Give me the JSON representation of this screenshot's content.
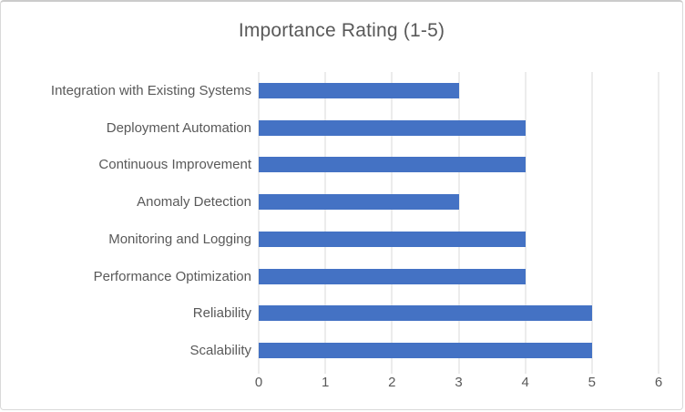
{
  "chart": {
    "title": "Importance Rating (1-5)"
  },
  "chart_data": {
    "type": "bar",
    "orientation": "horizontal",
    "title": "Importance Rating (1-5)",
    "categories": [
      "Integration with Existing Systems",
      "Deployment Automation",
      "Continuous Improvement",
      "Anomaly Detection",
      "Monitoring and Logging",
      "Performance Optimization",
      "Reliability",
      "Scalability"
    ],
    "values": [
      3,
      4,
      4,
      3,
      4,
      4,
      5,
      5
    ],
    "xlabel": "",
    "ylabel": "",
    "xlim": [
      0,
      6
    ],
    "x_ticks": [
      0,
      1,
      2,
      3,
      4,
      5,
      6
    ],
    "grid": true,
    "legend_position": "none",
    "bar_color": "#4472C4",
    "text_color": "#595959",
    "gridline_color": "#D9D9D9"
  }
}
